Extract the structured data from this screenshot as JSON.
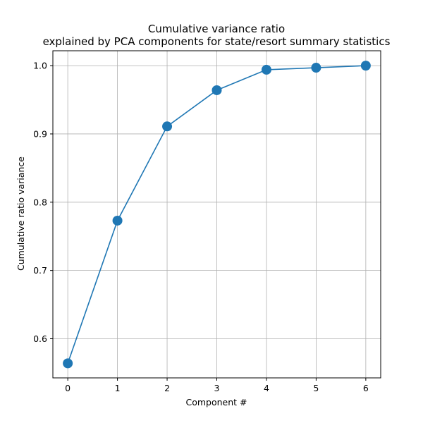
{
  "chart_data": {
    "type": "line",
    "title_line1": "Cumulative variance ratio",
    "title_line2": "explained by PCA components for state/resort summary statistics",
    "xlabel": "Component #",
    "ylabel": "Cumulative ratio variance",
    "x": [
      0,
      1,
      2,
      3,
      4,
      5,
      6
    ],
    "series": [
      {
        "values": [
          0.564,
          0.773,
          0.911,
          0.964,
          0.994,
          0.997,
          1.0
        ]
      }
    ],
    "xlim": [
      -0.3,
      6.3
    ],
    "ylim": [
      0.5427,
      1.0218
    ],
    "xticks": [
      0,
      1,
      2,
      3,
      4,
      5,
      6
    ],
    "yticks": [
      0.6,
      0.7,
      0.8,
      0.9,
      1.0
    ],
    "xtick_labels": [
      "0",
      "1",
      "2",
      "3",
      "4",
      "5",
      "6"
    ],
    "ytick_labels": [
      "0.6",
      "0.7",
      "0.8",
      "0.9",
      "1.0"
    ],
    "grid": true,
    "marker": "circle",
    "colors": {
      "line": "#1f77b4",
      "marker": "#1f77b4",
      "grid": "#b0b0b0",
      "axes": "#000000"
    }
  }
}
